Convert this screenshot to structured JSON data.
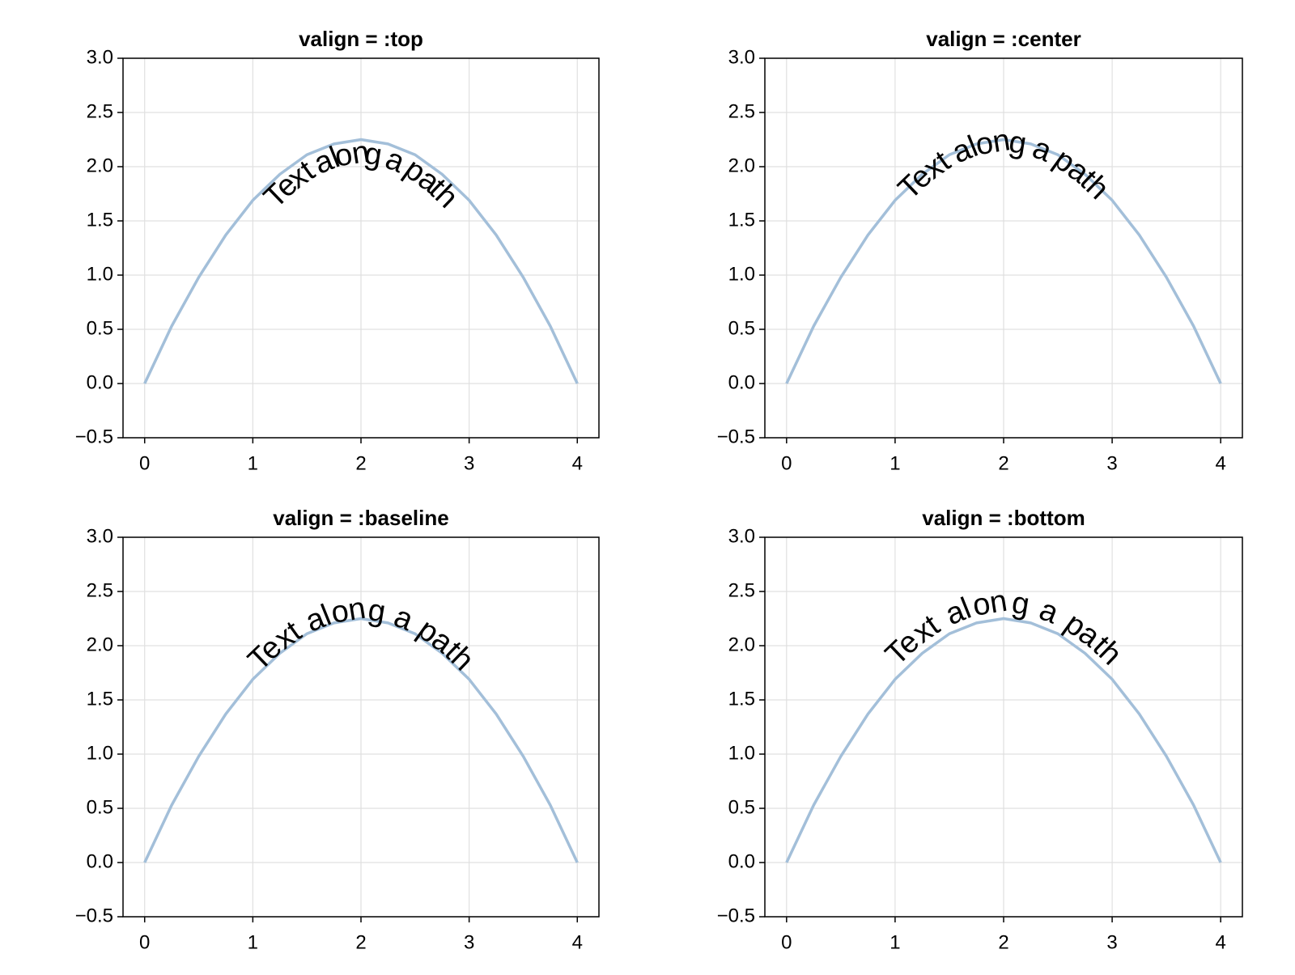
{
  "chart_data": [
    {
      "type": "line",
      "title": "valign = :top",
      "text_valign": "top",
      "annotation": "Text along a path",
      "x": [
        0,
        0.25,
        0.5,
        0.75,
        1,
        1.25,
        1.5,
        1.75,
        2,
        2.25,
        2.5,
        2.75,
        3,
        3.25,
        3.5,
        3.75,
        4
      ],
      "series": [
        {
          "color": "#a3bfd9",
          "values": [
            0,
            0.53,
            0.98,
            1.37,
            1.69,
            1.93,
            2.11,
            2.21,
            2.25,
            2.21,
            2.11,
            1.93,
            1.69,
            1.37,
            0.98,
            0.53,
            0
          ]
        }
      ],
      "xlim": [
        -0.2,
        4.2
      ],
      "xticks": [
        0,
        1,
        2,
        3,
        4
      ],
      "ylim": [
        -0.5,
        3.0
      ],
      "yticks": [
        {
          "value": -0.5,
          "label": "−0.5"
        },
        {
          "value": 0,
          "label": "0.0"
        },
        0.5,
        {
          "value": 1,
          "label": "1.0"
        },
        1.5,
        {
          "value": 2,
          "label": "2.0"
        },
        2.5,
        {
          "value": 3,
          "label": "3.0"
        }
      ],
      "grid": true
    },
    {
      "type": "line",
      "title": "valign = :center",
      "text_valign": "center",
      "annotation": "Text along a path",
      "x": [
        0,
        0.25,
        0.5,
        0.75,
        1,
        1.25,
        1.5,
        1.75,
        2,
        2.25,
        2.5,
        2.75,
        3,
        3.25,
        3.5,
        3.75,
        4
      ],
      "series": [
        {
          "color": "#a3bfd9",
          "values": [
            0,
            0.53,
            0.98,
            1.37,
            1.69,
            1.93,
            2.11,
            2.21,
            2.25,
            2.21,
            2.11,
            1.93,
            1.69,
            1.37,
            0.98,
            0.53,
            0
          ]
        }
      ],
      "xlim": [
        -0.2,
        4.2
      ],
      "xticks": [
        0,
        1,
        2,
        3,
        4
      ],
      "ylim": [
        -0.5,
        3.0
      ],
      "yticks": [
        {
          "value": -0.5,
          "label": "−0.5"
        },
        {
          "value": 0,
          "label": "0.0"
        },
        0.5,
        {
          "value": 1,
          "label": "1.0"
        },
        1.5,
        {
          "value": 2,
          "label": "2.0"
        },
        2.5,
        {
          "value": 3,
          "label": "3.0"
        }
      ],
      "grid": true
    },
    {
      "type": "line",
      "title": "valign = :baseline",
      "text_valign": "baseline",
      "annotation": "Text along a path",
      "x": [
        0,
        0.25,
        0.5,
        0.75,
        1,
        1.25,
        1.5,
        1.75,
        2,
        2.25,
        2.5,
        2.75,
        3,
        3.25,
        3.5,
        3.75,
        4
      ],
      "series": [
        {
          "color": "#a3bfd9",
          "values": [
            0,
            0.53,
            0.98,
            1.37,
            1.69,
            1.93,
            2.11,
            2.21,
            2.25,
            2.21,
            2.11,
            1.93,
            1.69,
            1.37,
            0.98,
            0.53,
            0
          ]
        }
      ],
      "xlim": [
        -0.2,
        4.2
      ],
      "xticks": [
        0,
        1,
        2,
        3,
        4
      ],
      "ylim": [
        -0.5,
        3.0
      ],
      "yticks": [
        {
          "value": -0.5,
          "label": "−0.5"
        },
        {
          "value": 0,
          "label": "0.0"
        },
        0.5,
        {
          "value": 1,
          "label": "1.0"
        },
        1.5,
        {
          "value": 2,
          "label": "2.0"
        },
        2.5,
        {
          "value": 3,
          "label": "3.0"
        }
      ],
      "grid": true
    },
    {
      "type": "line",
      "title": "valign = :bottom",
      "text_valign": "bottom",
      "annotation": "Text along a path",
      "x": [
        0,
        0.25,
        0.5,
        0.75,
        1,
        1.25,
        1.5,
        1.75,
        2,
        2.25,
        2.5,
        2.75,
        3,
        3.25,
        3.5,
        3.75,
        4
      ],
      "series": [
        {
          "color": "#a3bfd9",
          "values": [
            0,
            0.53,
            0.98,
            1.37,
            1.69,
            1.93,
            2.11,
            2.21,
            2.25,
            2.21,
            2.11,
            1.93,
            1.69,
            1.37,
            0.98,
            0.53,
            0
          ]
        }
      ],
      "xlim": [
        -0.2,
        4.2
      ],
      "xticks": [
        0,
        1,
        2,
        3,
        4
      ],
      "ylim": [
        -0.5,
        3.0
      ],
      "yticks": [
        {
          "value": -0.5,
          "label": "−0.5"
        },
        {
          "value": 0,
          "label": "0.0"
        },
        0.5,
        {
          "value": 1,
          "label": "1.0"
        },
        1.5,
        {
          "value": 2,
          "label": "2.0"
        },
        2.5,
        {
          "value": 3,
          "label": "3.0"
        }
      ],
      "grid": true
    }
  ]
}
